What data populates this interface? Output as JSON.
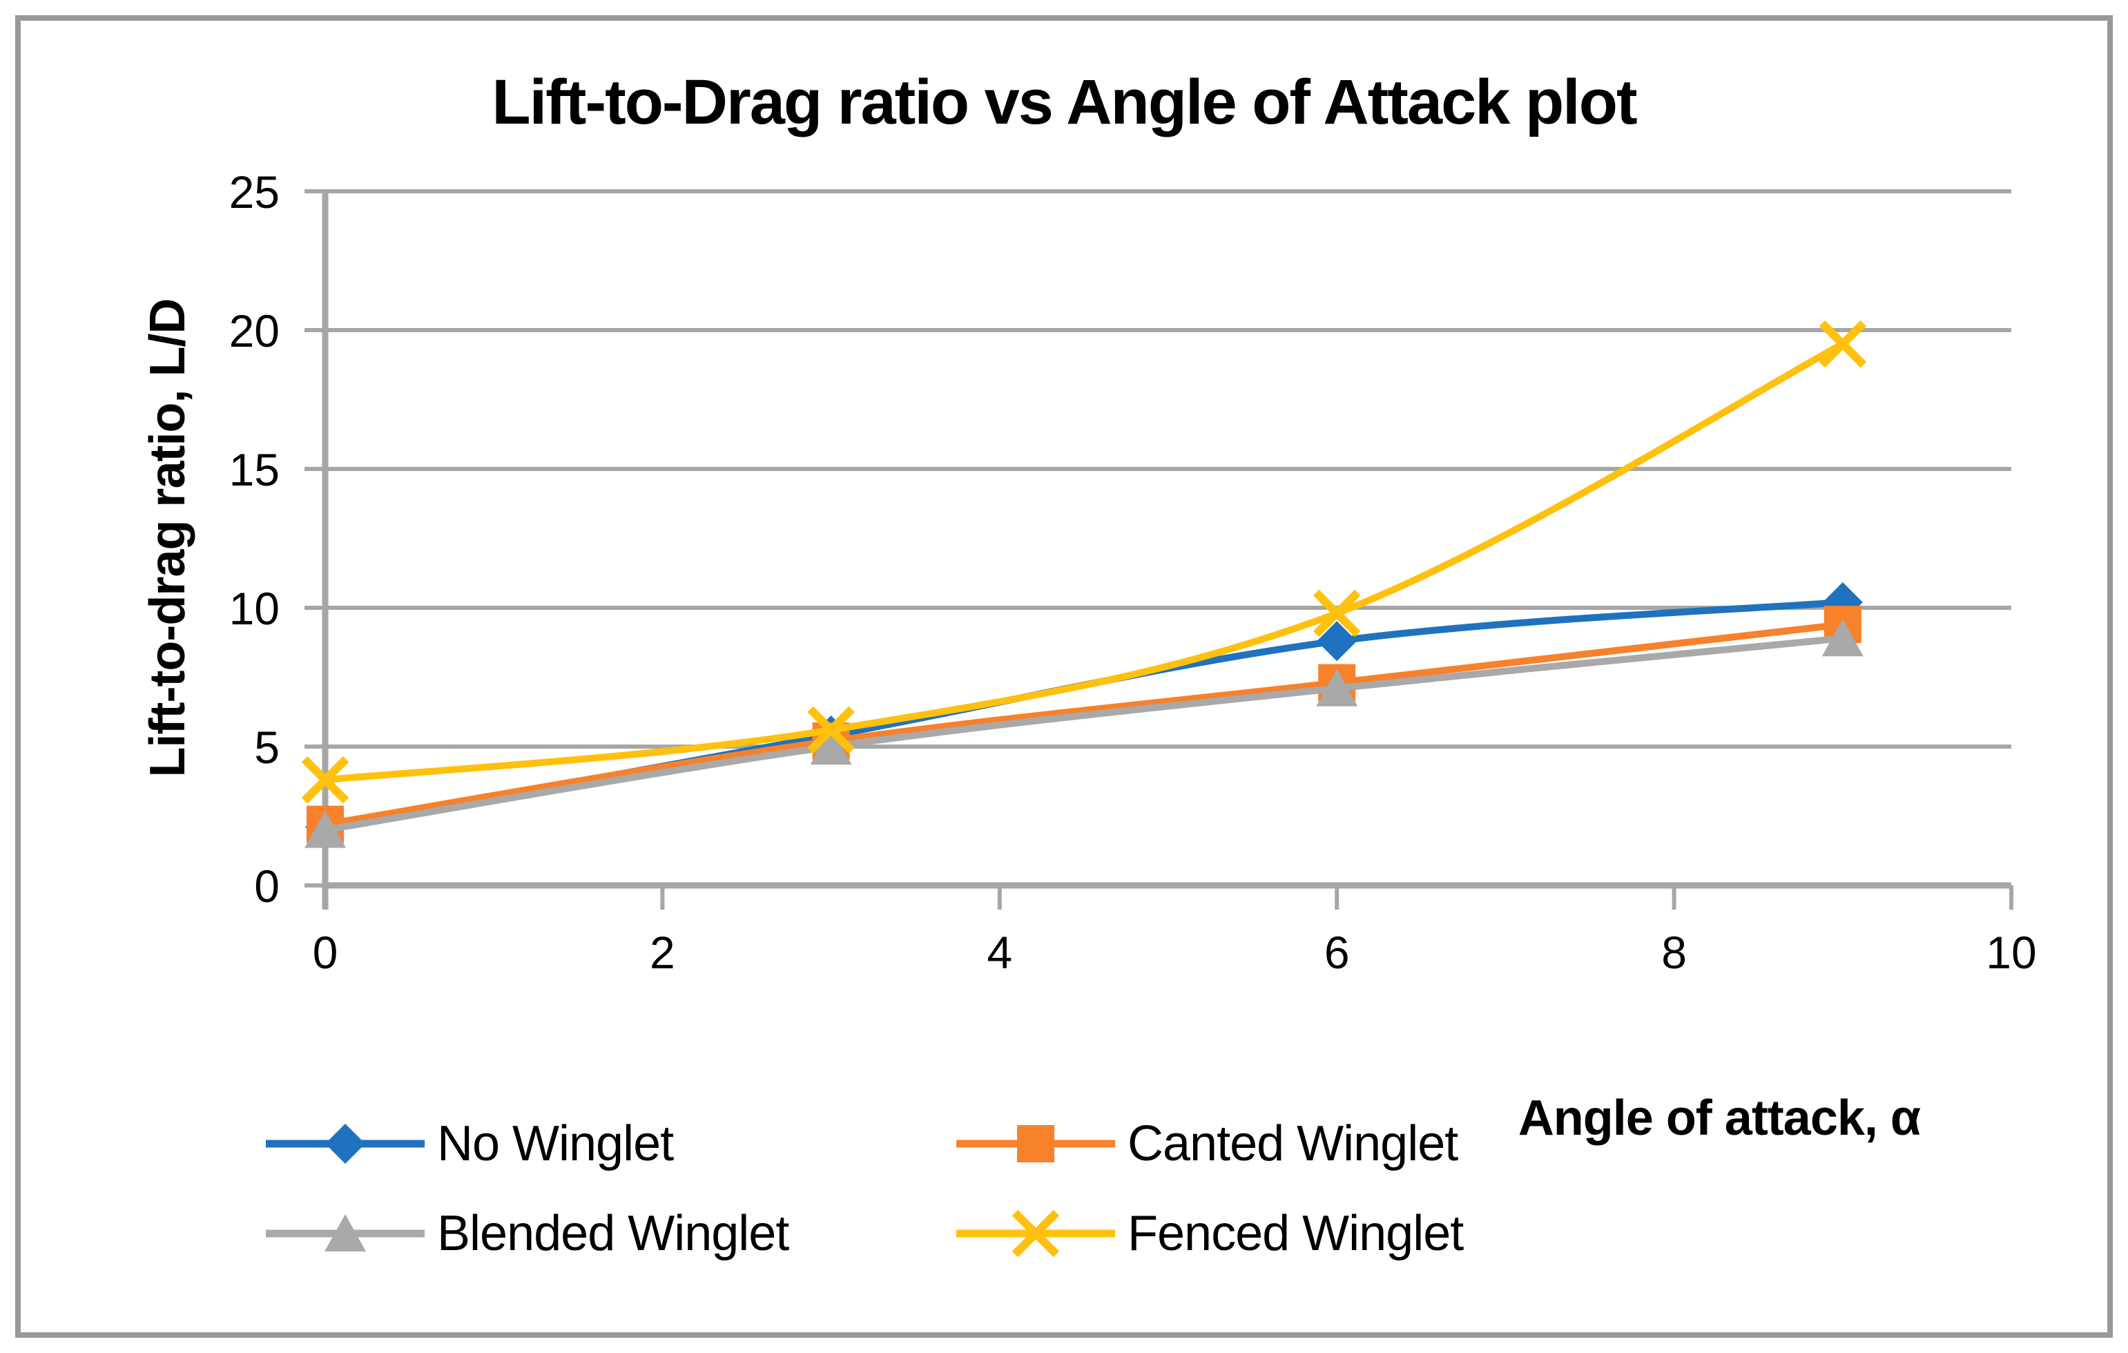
{
  "chart_data": {
    "type": "line",
    "title": "Lift-to-Drag ratio vs Angle of Attack plot",
    "x_axis": {
      "label": "Angle of attack, α",
      "min": 0,
      "max": 10,
      "ticks": [
        0,
        2,
        4,
        6,
        8,
        10
      ]
    },
    "y_axis": {
      "label": "Lift-to-drag ratio, L/D",
      "min": 0,
      "max": 25,
      "ticks": [
        0,
        5,
        10,
        15,
        20,
        25
      ]
    },
    "x": [
      0,
      3,
      6,
      9
    ],
    "series": [
      {
        "name": "No Winglet",
        "marker": "diamond",
        "color": "#1F72BE",
        "values": [
          2.1,
          5.4,
          8.8,
          10.2
        ]
      },
      {
        "name": "Canted Winglet",
        "marker": "square",
        "color": "#F8812B",
        "values": [
          2.2,
          5.2,
          7.3,
          9.4
        ]
      },
      {
        "name": "Blended Winglet",
        "marker": "triangle",
        "color": "#A9A9A9",
        "values": [
          2.0,
          5.0,
          7.1,
          8.9
        ]
      },
      {
        "name": "Fenced Winglet",
        "marker": "x",
        "color": "#FFC10D",
        "values": [
          3.8,
          5.6,
          9.8,
          19.5
        ]
      }
    ],
    "smooth": true,
    "grid": true,
    "grid_color": "#A6A6A6",
    "axis_color": "#A6A6A6",
    "border_color": "#999999",
    "legend_position": "bottom"
  }
}
